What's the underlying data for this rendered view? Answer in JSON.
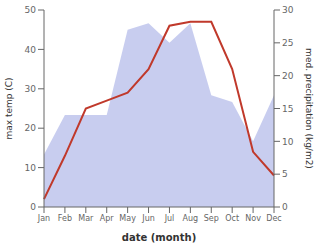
{
  "chart_data": {
    "type": "line",
    "xlabel": "date (month)",
    "ylabel": "max temp (C)",
    "y2label": "med. precipitation (kg/m2)",
    "categories": [
      "Jan",
      "Feb",
      "Mar",
      "Apr",
      "May",
      "Jun",
      "Jul",
      "Aug",
      "Sep",
      "Oct",
      "Nov",
      "Dec"
    ],
    "series": [
      {
        "type": "area",
        "axis": "y2",
        "color": "#b0b8e8",
        "values": [
          8,
          14,
          14,
          14,
          27,
          28,
          25,
          28,
          17,
          16,
          10,
          17
        ]
      },
      {
        "type": "line",
        "color": "#c0392b",
        "values": [
          2,
          13,
          25,
          27,
          29,
          35,
          46,
          47,
          47,
          35,
          14,
          8
        ]
      }
    ],
    "ylim": [
      0,
      50
    ],
    "yticks": [
      0,
      10,
      20,
      30,
      40,
      50
    ],
    "y2lim": [
      0,
      30
    ],
    "y2ticks": [
      0,
      5,
      10,
      15,
      20,
      25,
      30
    ],
    "grid": false
  }
}
